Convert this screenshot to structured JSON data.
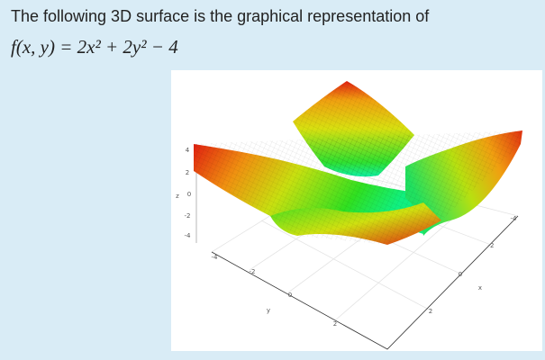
{
  "question": {
    "text": "The following 3D surface is the graphical representation of",
    "formula": "f(x, y) = 2x² + 2y² − 4"
  },
  "plot": {
    "z_label": "z",
    "z_ticks": [
      "4",
      "2",
      "0",
      "-2",
      "-4"
    ],
    "y_label": "y",
    "y_ticks": [
      "-4",
      "-2",
      "0",
      "2"
    ],
    "x_label": "x",
    "x_ticks": [
      "-4",
      "-2",
      "0",
      "2"
    ]
  }
}
